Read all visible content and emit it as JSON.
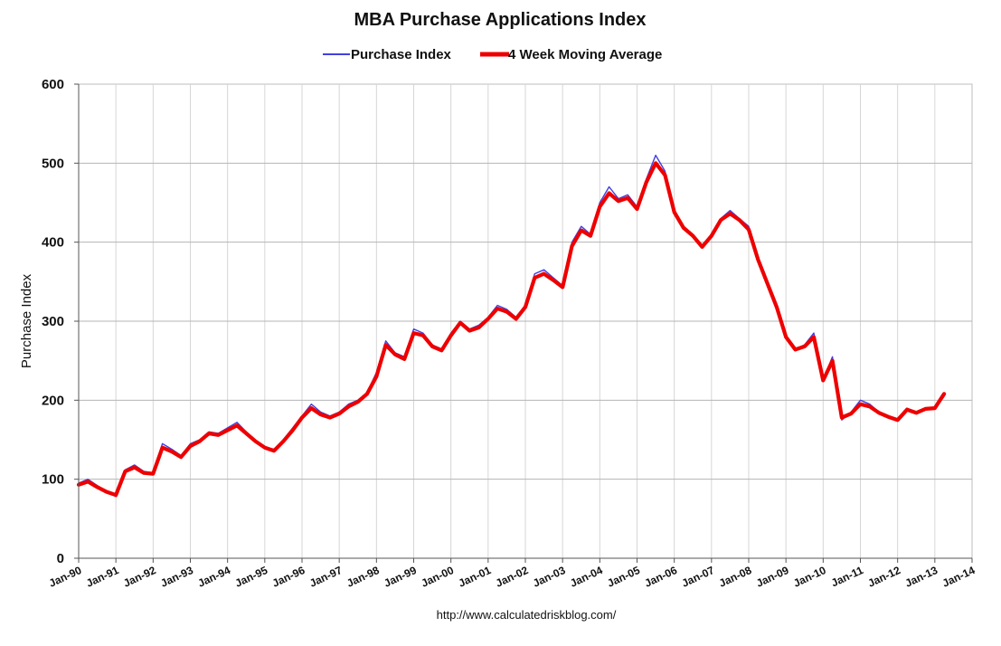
{
  "chart_data": {
    "type": "line",
    "title": "MBA Purchase Applications Index",
    "ylabel": "Purchase Index",
    "xlabel": "",
    "ylim": [
      0,
      600
    ],
    "yticks": [
      0,
      100,
      200,
      300,
      400,
      500,
      600
    ],
    "xlim": [
      "1990-01",
      "2014-01"
    ],
    "xtick_labels": [
      "Jan-90",
      "Jan-91",
      "Jan-92",
      "Jan-93",
      "Jan-94",
      "Jan-95",
      "Jan-96",
      "Jan-97",
      "Jan-98",
      "Jan-99",
      "Jan-00",
      "Jan-01",
      "Jan-02",
      "Jan-03",
      "Jan-04",
      "Jan-05",
      "Jan-06",
      "Jan-07",
      "Jan-08",
      "Jan-09",
      "Jan-10",
      "Jan-11",
      "Jan-12",
      "Jan-13",
      "Jan-14"
    ],
    "grid": true,
    "legend_position": "top-center",
    "source": "http://www.calculatedriskblog.com/",
    "series": [
      {
        "name": "Purchase Index",
        "color": "#4040e0",
        "x": [
          "1990-01",
          "1990-04",
          "1990-07",
          "1990-10",
          "1991-01",
          "1991-04",
          "1991-07",
          "1991-10",
          "1992-01",
          "1992-04",
          "1992-07",
          "1992-10",
          "1993-01",
          "1993-04",
          "1993-07",
          "1993-10",
          "1994-01",
          "1994-04",
          "1994-07",
          "1994-10",
          "1995-01",
          "1995-04",
          "1995-07",
          "1995-10",
          "1996-01",
          "1996-04",
          "1996-07",
          "1996-10",
          "1997-01",
          "1997-04",
          "1997-07",
          "1997-10",
          "1998-01",
          "1998-04",
          "1998-07",
          "1998-10",
          "1999-01",
          "1999-04",
          "1999-07",
          "1999-10",
          "2000-01",
          "2000-04",
          "2000-07",
          "2000-10",
          "2001-01",
          "2001-04",
          "2001-07",
          "2001-10",
          "2002-01",
          "2002-04",
          "2002-07",
          "2002-10",
          "2003-01",
          "2003-04",
          "2003-07",
          "2003-10",
          "2004-01",
          "2004-04",
          "2004-07",
          "2004-10",
          "2005-01",
          "2005-04",
          "2005-07",
          "2005-10",
          "2006-01",
          "2006-04",
          "2006-07",
          "2006-10",
          "2007-01",
          "2007-04",
          "2007-07",
          "2007-10",
          "2008-01",
          "2008-04",
          "2008-07",
          "2008-10",
          "2009-01",
          "2009-04",
          "2009-07",
          "2009-10",
          "2010-01",
          "2010-04",
          "2010-07",
          "2010-10",
          "2011-01",
          "2011-04",
          "2011-07",
          "2011-10",
          "2012-01",
          "2012-04",
          "2012-07",
          "2012-10",
          "2013-01",
          "2013-04"
        ],
        "y": [
          95,
          100,
          92,
          85,
          78,
          112,
          118,
          110,
          108,
          145,
          138,
          130,
          145,
          150,
          160,
          158,
          165,
          172,
          160,
          148,
          140,
          138,
          150,
          165,
          180,
          195,
          185,
          180,
          185,
          195,
          200,
          210,
          235,
          275,
          260,
          255,
          290,
          285,
          270,
          265,
          285,
          300,
          290,
          295,
          305,
          320,
          315,
          305,
          320,
          360,
          365,
          355,
          345,
          400,
          420,
          410,
          450,
          470,
          455,
          460,
          445,
          480,
          510,
          490,
          440,
          420,
          410,
          395,
          410,
          430,
          440,
          430,
          420,
          380,
          350,
          320,
          280,
          265,
          270,
          285,
          225,
          255,
          175,
          185,
          200,
          195,
          185,
          180,
          175,
          190,
          185,
          190,
          190,
          205
        ]
      },
      {
        "name": "4 Week Moving Average",
        "color": "#ee0000",
        "x": [
          "1990-01",
          "1990-04",
          "1990-07",
          "1990-10",
          "1991-01",
          "1991-04",
          "1991-07",
          "1991-10",
          "1992-01",
          "1992-04",
          "1992-07",
          "1992-10",
          "1993-01",
          "1993-04",
          "1993-07",
          "1993-10",
          "1994-01",
          "1994-04",
          "1994-07",
          "1994-10",
          "1995-01",
          "1995-04",
          "1995-07",
          "1995-10",
          "1996-01",
          "1996-04",
          "1996-07",
          "1996-10",
          "1997-01",
          "1997-04",
          "1997-07",
          "1997-10",
          "1998-01",
          "1998-04",
          "1998-07",
          "1998-10",
          "1999-01",
          "1999-04",
          "1999-07",
          "1999-10",
          "2000-01",
          "2000-04",
          "2000-07",
          "2000-10",
          "2001-01",
          "2001-04",
          "2001-07",
          "2001-10",
          "2002-01",
          "2002-04",
          "2002-07",
          "2002-10",
          "2003-01",
          "2003-04",
          "2003-07",
          "2003-10",
          "2004-01",
          "2004-04",
          "2004-07",
          "2004-10",
          "2005-01",
          "2005-04",
          "2005-07",
          "2005-10",
          "2006-01",
          "2006-04",
          "2006-07",
          "2006-10",
          "2007-01",
          "2007-04",
          "2007-07",
          "2007-10",
          "2008-01",
          "2008-04",
          "2008-07",
          "2008-10",
          "2009-01",
          "2009-04",
          "2009-07",
          "2009-10",
          "2010-01",
          "2010-04",
          "2010-07",
          "2010-10",
          "2011-01",
          "2011-04",
          "2011-07",
          "2011-10",
          "2012-01",
          "2012-04",
          "2012-07",
          "2012-10",
          "2013-01",
          "2013-04"
        ],
        "y": [
          93,
          97,
          90,
          84,
          80,
          110,
          115,
          108,
          107,
          140,
          135,
          128,
          142,
          148,
          158,
          156,
          162,
          168,
          158,
          148,
          140,
          136,
          148,
          162,
          178,
          190,
          182,
          178,
          183,
          192,
          198,
          208,
          230,
          270,
          258,
          252,
          285,
          282,
          268,
          263,
          282,
          298,
          288,
          292,
          303,
          316,
          312,
          303,
          318,
          355,
          360,
          352,
          343,
          395,
          415,
          408,
          445,
          462,
          452,
          456,
          442,
          476,
          500,
          485,
          438,
          418,
          408,
          394,
          408,
          428,
          436,
          428,
          416,
          378,
          348,
          318,
          280,
          264,
          268,
          280,
          225,
          250,
          178,
          183,
          195,
          192,
          184,
          179,
          175,
          188,
          184,
          189,
          190,
          208
        ]
      }
    ]
  }
}
